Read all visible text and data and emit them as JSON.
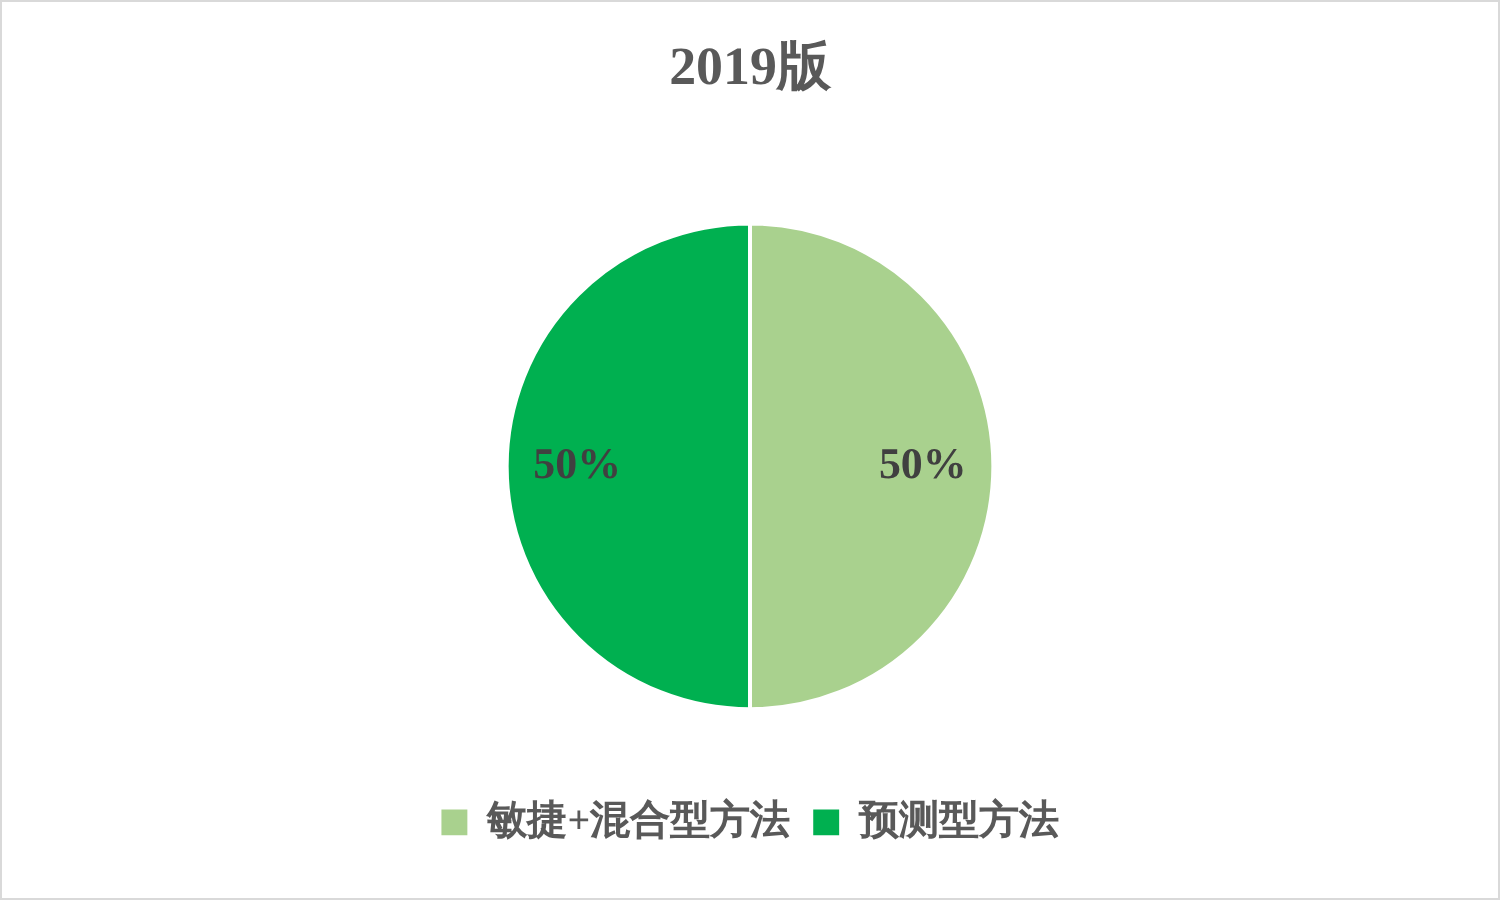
{
  "chart_data": {
    "type": "pie",
    "title": "2019版",
    "categories": [
      "敏捷+混合型方法",
      "预测型方法"
    ],
    "values": [
      50,
      50
    ],
    "colors": [
      "#a9d18e",
      "#00b050"
    ],
    "value_labels": [
      "50%",
      "50%"
    ],
    "legend": "bottom"
  }
}
